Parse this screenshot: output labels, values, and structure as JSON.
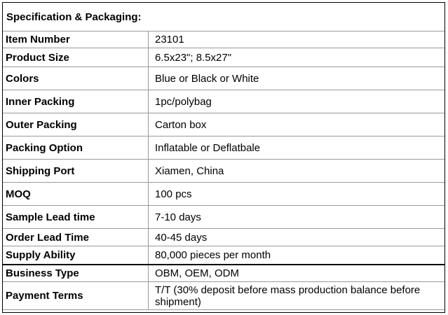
{
  "title": "Specification & Packaging:",
  "rows": [
    {
      "label": "Item Number",
      "value": "23101"
    },
    {
      "label": "Product Size",
      "value": "6.5x23\"; 8.5x27\""
    },
    {
      "label": "Colors",
      "value": "Blue or Black or White"
    },
    {
      "label": "Inner Packing",
      "value": "1pc/polybag"
    },
    {
      "label": "Outer Packing",
      "value": "Carton box"
    },
    {
      "label": "Packing Option",
      "value": "Inflatable or Deflatbale"
    },
    {
      "label": "Shipping Port",
      "value": "Xiamen, China"
    },
    {
      "label": "MOQ",
      "value": "100 pcs"
    },
    {
      "label": "Sample Lead time",
      "value": "7-10 days"
    },
    {
      "label": "Order Lead Time",
      "value": "40-45 days"
    },
    {
      "label": "Supply Ability",
      "value": "80,000 pieces per month"
    },
    {
      "label": "Business Type",
      "value": "OBM, OEM, ODM"
    },
    {
      "label": "Payment Terms",
      "value": "T/T (30% deposit before mass production balance before shipment)"
    }
  ]
}
